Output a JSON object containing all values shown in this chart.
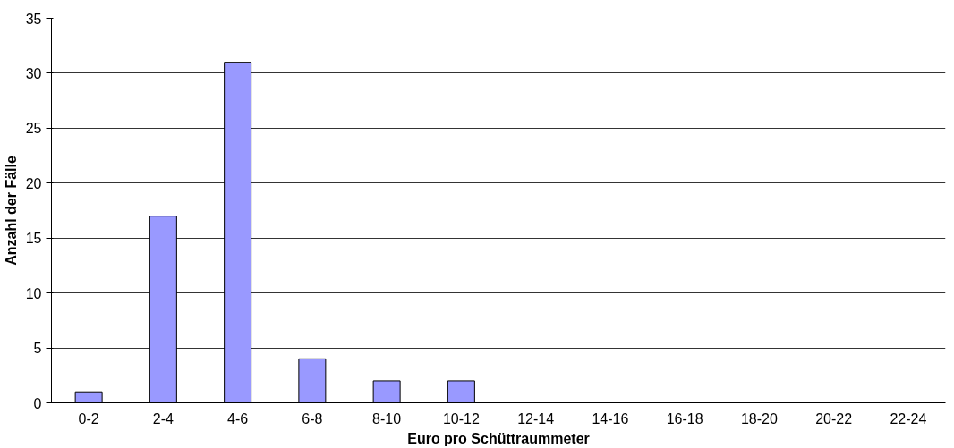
{
  "chart_data": {
    "type": "bar",
    "xlabel": "Euro pro Schüttraummeter",
    "ylabel": "Anzahl der Fälle",
    "categories": [
      "0-2",
      "2-4",
      "4-6",
      "6-8",
      "8-10",
      "10-12",
      "12-14",
      "14-16",
      "16-18",
      "18-20",
      "20-22",
      "22-24"
    ],
    "values": [
      1,
      17,
      31,
      4,
      2,
      2,
      0,
      0,
      0,
      0,
      0,
      0
    ],
    "color": "#9999ff",
    "ylim": [
      0,
      35
    ],
    "yticks": [
      0,
      5,
      10,
      15,
      20,
      25,
      30,
      35
    ],
    "grid": "y"
  }
}
